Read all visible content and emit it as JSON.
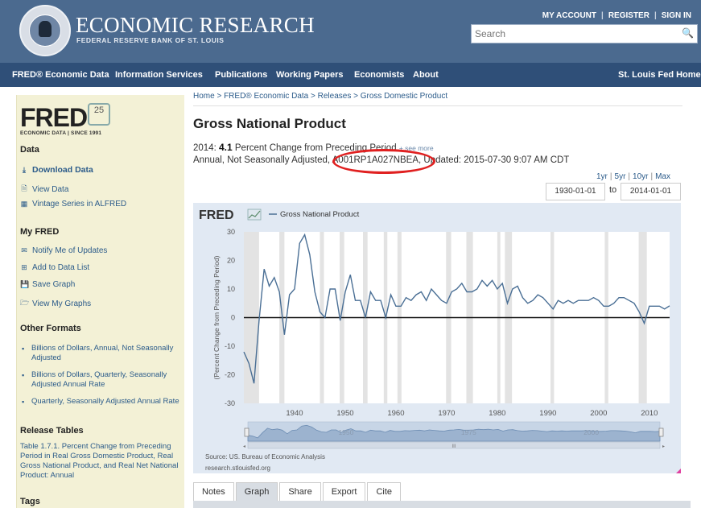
{
  "header": {
    "brand": "ECONOMIC RESEARCH",
    "brand_sub": "FEDERAL RESERVE BANK OF ST. LOUIS",
    "links": [
      "MY ACCOUNT",
      "REGISTER",
      "SIGN IN"
    ],
    "search_placeholder": "Search"
  },
  "nav": {
    "items": [
      "FRED® Economic Data",
      "Information Services",
      "Publications",
      "Working Papers",
      "Economists",
      "About"
    ],
    "right": "St. Louis Fed Home"
  },
  "sidebar": {
    "logo": "FRED",
    "logo_badge": "25",
    "logo_sub": "ECONOMIC DATA | SINCE 1991",
    "data_heading": "Data",
    "data_links": [
      "Download Data",
      "View Data",
      "Vintage Series in ALFRED"
    ],
    "myfred_heading": "My FRED",
    "myfred_links": [
      "Notify Me of Updates",
      "Add to Data List",
      "Save Graph",
      "View My Graphs"
    ],
    "formats_heading": "Other Formats",
    "formats": [
      "Billions of Dollars, Annual, Not Seasonally Adjusted",
      "Billions of Dollars, Quarterly, Seasonally Adjusted Annual Rate",
      "Quarterly, Seasonally Adjusted Annual Rate"
    ],
    "release_heading": "Release Tables",
    "release_text": "Table 1.7.1. Percent Change from Preceding Period in Real Gross Domestic Product, Real Gross National Product, and Real Net National Product: Annual",
    "tags_heading": "Tags"
  },
  "main": {
    "breadcrumb": "Home > FRED® Economic Data > Releases > Gross Domestic Product",
    "title": "Gross National Product",
    "obs_year": "2014:",
    "obs_value": "4.1",
    "obs_units": "Percent Change from Preceding Period",
    "obs_more": "+ see more",
    "meta_prefix": "Annual, Not Seasonally Adjusted, ",
    "series_id": "A001RP1A027NBEA",
    "meta_updated": ", Updated: 2015-07-30 9:07 AM CDT",
    "ranges": [
      "1yr",
      "5yr",
      "10yr",
      "Max"
    ],
    "date_start": "1930-01-01",
    "date_to": "to",
    "date_end": "2014-01-01",
    "tabs": [
      "Notes",
      "Graph",
      "Share",
      "Export",
      "Cite"
    ],
    "active_tab": "Graph"
  },
  "chart_data": {
    "type": "line",
    "logo": "FRED",
    "legend": "Gross National Product",
    "ylabel": "(Percent Change from Preceding Period)",
    "ylim": [
      -30,
      30
    ],
    "yticks": [
      30,
      20,
      10,
      0,
      -10,
      -20,
      -30
    ],
    "xlim": [
      1930,
      2014
    ],
    "xticks": [
      1940,
      1950,
      1960,
      1970,
      1980,
      1990,
      2000,
      2010
    ],
    "navigator_labels": [
      1950,
      1975,
      2000
    ],
    "source": "Source: US. Bureau of Economic Analysis",
    "site": "research.stlouisfed.org",
    "recessions": [
      [
        1930,
        1933
      ],
      [
        1937,
        1938
      ],
      [
        1945,
        1945.8
      ],
      [
        1948.9,
        1949.8
      ],
      [
        1953.5,
        1954.4
      ],
      [
        1957.6,
        1958.3
      ],
      [
        1960.3,
        1961.1
      ],
      [
        1969.9,
        1970.9
      ],
      [
        1973.9,
        1975.2
      ],
      [
        1980,
        1980.6
      ],
      [
        1981.5,
        1982.9
      ],
      [
        1990.5,
        1991.2
      ],
      [
        2001.2,
        2001.9
      ],
      [
        2007.9,
        2009.5
      ]
    ],
    "x": [
      1930,
      1931,
      1932,
      1933,
      1934,
      1935,
      1936,
      1937,
      1938,
      1939,
      1940,
      1941,
      1942,
      1943,
      1944,
      1945,
      1946,
      1947,
      1948,
      1949,
      1950,
      1951,
      1952,
      1953,
      1954,
      1955,
      1956,
      1957,
      1958,
      1959,
      1960,
      1961,
      1962,
      1963,
      1964,
      1965,
      1966,
      1967,
      1968,
      1969,
      1970,
      1971,
      1972,
      1973,
      1974,
      1975,
      1976,
      1977,
      1978,
      1979,
      1980,
      1981,
      1982,
      1983,
      1984,
      1985,
      1986,
      1987,
      1988,
      1989,
      1990,
      1991,
      1992,
      1993,
      1994,
      1995,
      1996,
      1997,
      1998,
      1999,
      2000,
      2001,
      2002,
      2003,
      2004,
      2005,
      2006,
      2007,
      2008,
      2009,
      2010,
      2011,
      2012,
      2013,
      2014
    ],
    "values": [
      -12,
      -16,
      -23,
      -1,
      17,
      11,
      14,
      9,
      -6,
      8,
      10,
      26,
      29,
      22,
      9,
      2,
      0,
      10,
      10,
      -1,
      9,
      15,
      6,
      6,
      0,
      9,
      6,
      6,
      0,
      8,
      4,
      4,
      7,
      6,
      8,
      9,
      6,
      10,
      8,
      6,
      5,
      9,
      10,
      12,
      9,
      9,
      10,
      13,
      11,
      13,
      10,
      12,
      5,
      10,
      11,
      7,
      5,
      6,
      8,
      7,
      5,
      3,
      6,
      5,
      6,
      5,
      6,
      6,
      6,
      7,
      6,
      4,
      4,
      5,
      7,
      7,
      6,
      5,
      2,
      -2,
      4,
      4,
      4,
      3,
      4.1
    ]
  }
}
